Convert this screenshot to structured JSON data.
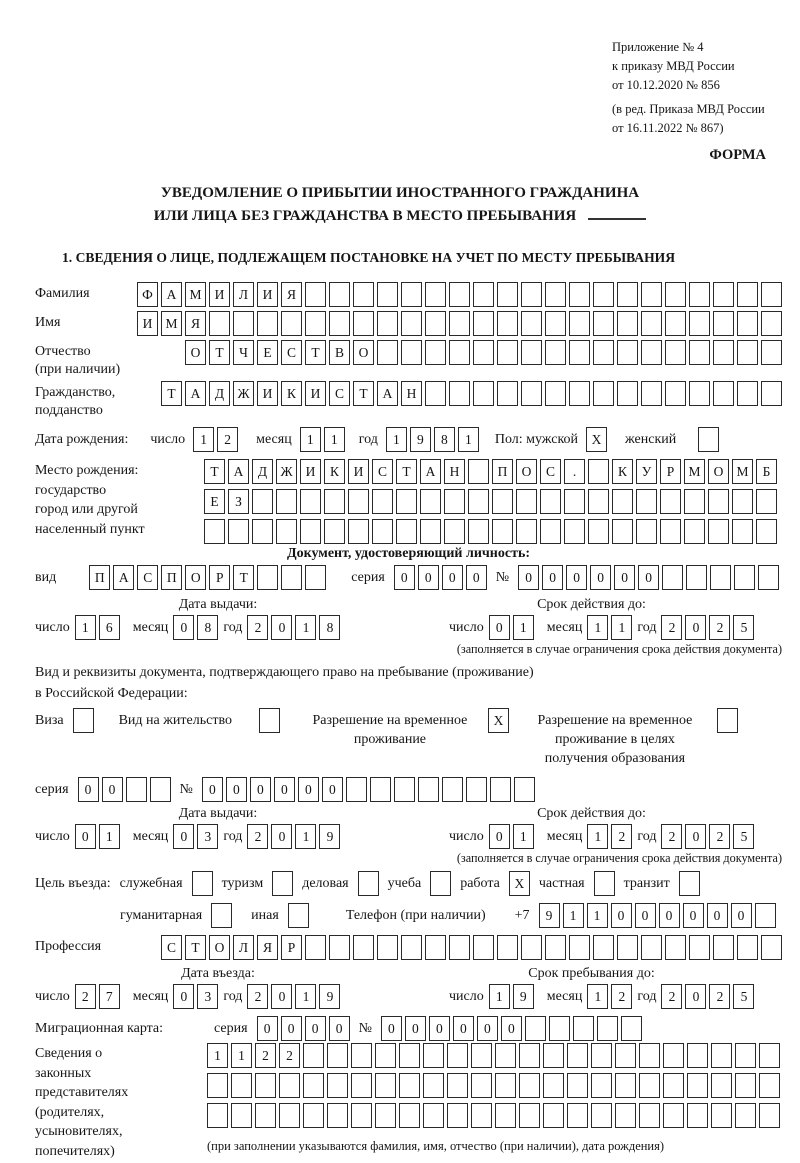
{
  "header": {
    "annex_lines": [
      "Приложение № 4",
      "к приказу МВД России",
      "от 10.12.2020 № 856",
      "(в ред. Приказа МВД России",
      "от 16.11.2022 № 867)"
    ],
    "form_label": "ФОРМА"
  },
  "title": {
    "line1": "УВЕДОМЛЕНИЕ О ПРИБЫТИИ ИНОСТРАННОГО ГРАЖДАНИНА",
    "line2": "ИЛИ ЛИЦА БЕЗ ГРАЖДАНСТВА В МЕСТО ПРЕБЫВАНИЯ"
  },
  "section1": {
    "heading": "1. СВЕДЕНИЯ О ЛИЦЕ, ПОДЛЕЖАЩЕМ ПОСТАНОВКЕ НА УЧЕТ ПО МЕСТУ ПРЕБЫВАНИЯ"
  },
  "common": {
    "day": "число",
    "month": "месяц",
    "year": "год",
    "seriya": "серия",
    "no": "№",
    "issue_date": "Дата выдачи:",
    "valid_until": "Срок действия до:",
    "restriction_note": "(заполняется в случае ограничения срока действия документа)"
  },
  "fields": {
    "surname": {
      "label": "Фамилия",
      "cells": {
        "text": "ФАМИЛИЯ",
        "total": 27
      }
    },
    "name": {
      "label": "Имя",
      "cells": {
        "text": "ИМЯ",
        "total": 27
      }
    },
    "patronymic": {
      "label": "Отчество",
      "label2": "(при наличии)",
      "cells": {
        "text": "ОТЧЕСТВО",
        "total": 25
      }
    },
    "citizenship": {
      "label": "Гражданство,",
      "label2": "подданство",
      "cells": {
        "text": "ТАДЖИКИСТАН",
        "total": 26
      }
    },
    "birth_date": {
      "label": "Дата рождения:",
      "day": {
        "text": "12",
        "total": 2
      },
      "month": {
        "text": "11",
        "total": 2
      },
      "year": {
        "text": "1981",
        "total": 4
      },
      "gender_label": "Пол: мужской",
      "male_mark": "X",
      "female_label": "женский",
      "female_mark": ""
    },
    "birth_place": {
      "label_lines": [
        "Место рождения:",
        "государство",
        "город или другой",
        "населенный пункт"
      ],
      "row1": {
        "text": "ТАДЖИКИСТАН ПОС. КУРМОМБ",
        "total": 24
      },
      "row2": {
        "text": "ЕЗ",
        "total": 24
      },
      "row3": {
        "text": "",
        "total": 24
      }
    }
  },
  "identity_doc": {
    "heading": "Документ, удостоверяющий личность:",
    "kind_label": "вид",
    "kind": {
      "text": "ПАСПОРТ",
      "total": 10
    },
    "seriya": {
      "text": "0000",
      "total": 4
    },
    "number": {
      "text": "000000",
      "total": 11
    },
    "issue": {
      "day": {
        "text": "16",
        "total": 2
      },
      "month": {
        "text": "08",
        "total": 2
      },
      "year": {
        "text": "2018",
        "total": 4
      }
    },
    "valid": {
      "day": {
        "text": "01",
        "total": 2
      },
      "month": {
        "text": "11",
        "total": 2
      },
      "year": {
        "text": "2025",
        "total": 4
      }
    }
  },
  "residence_doc": {
    "intro1": "Вид и реквизиты документа, подтверждающего право на пребывание (проживание)",
    "intro2": "в Российской Федерации:",
    "options": [
      {
        "label": "Виза",
        "checked": ""
      },
      {
        "label": "Вид на жительство",
        "checked": ""
      },
      {
        "label": "Разрешение на временное проживание",
        "checked": "X"
      },
      {
        "label": "Разрешение на временное проживание в целях получения образования",
        "checked": ""
      }
    ],
    "seriya": {
      "text": "00",
      "total": 4
    },
    "number": {
      "text": "000000",
      "total": 14
    },
    "issue": {
      "day": {
        "text": "01",
        "total": 2
      },
      "month": {
        "text": "03",
        "total": 2
      },
      "year": {
        "text": "2019",
        "total": 4
      }
    },
    "valid": {
      "day": {
        "text": "01",
        "total": 2
      },
      "month": {
        "text": "12",
        "total": 2
      },
      "year": {
        "text": "2025",
        "total": 4
      }
    }
  },
  "visit": {
    "label": "Цель въезда:",
    "purposes": [
      {
        "label": "служебная",
        "checked": ""
      },
      {
        "label": "туризм",
        "checked": ""
      },
      {
        "label": "деловая",
        "checked": ""
      },
      {
        "label": "учеба",
        "checked": ""
      },
      {
        "label": "работа",
        "checked": "X"
      },
      {
        "label": "частная",
        "checked": ""
      },
      {
        "label": "транзит",
        "checked": ""
      },
      {
        "label": "гуманитарная",
        "checked": ""
      },
      {
        "label": "иная",
        "checked": ""
      }
    ],
    "phone_label": "Телефон (при наличии)",
    "phone_prefix": "+7",
    "phone": {
      "text": "911000000",
      "total": 10
    }
  },
  "profession": {
    "label": "Профессия",
    "cells": {
      "text": "СТОЛЯР",
      "total": 26
    }
  },
  "entry_date": {
    "heading": "Дата въезда:",
    "day": {
      "text": "27",
      "total": 2
    },
    "month": {
      "text": "03",
      "total": 2
    },
    "year": {
      "text": "2019",
      "total": 4
    }
  },
  "stay_until": {
    "heading": "Срок пребывания до:",
    "day": {
      "text": "19",
      "total": 2
    },
    "month": {
      "text": "12",
      "total": 2
    },
    "year": {
      "text": "2025",
      "total": 4
    }
  },
  "migration_card": {
    "label": "Миграционная карта:",
    "seriya": {
      "text": "0000",
      "total": 4
    },
    "number": {
      "text": "000000",
      "total": 11
    }
  },
  "representatives": {
    "label_lines": [
      "Сведения о",
      "законных",
      "представителях",
      "(родителях,",
      "усыновителях,",
      "попечителях)"
    ],
    "row1": {
      "text": "1122",
      "total": 24
    },
    "row2": {
      "text": "",
      "total": 24
    },
    "row3": {
      "text": "",
      "total": 24
    },
    "note": "(при заполнении указываются фамилия, имя, отчество (при наличии), дата рождения)"
  }
}
